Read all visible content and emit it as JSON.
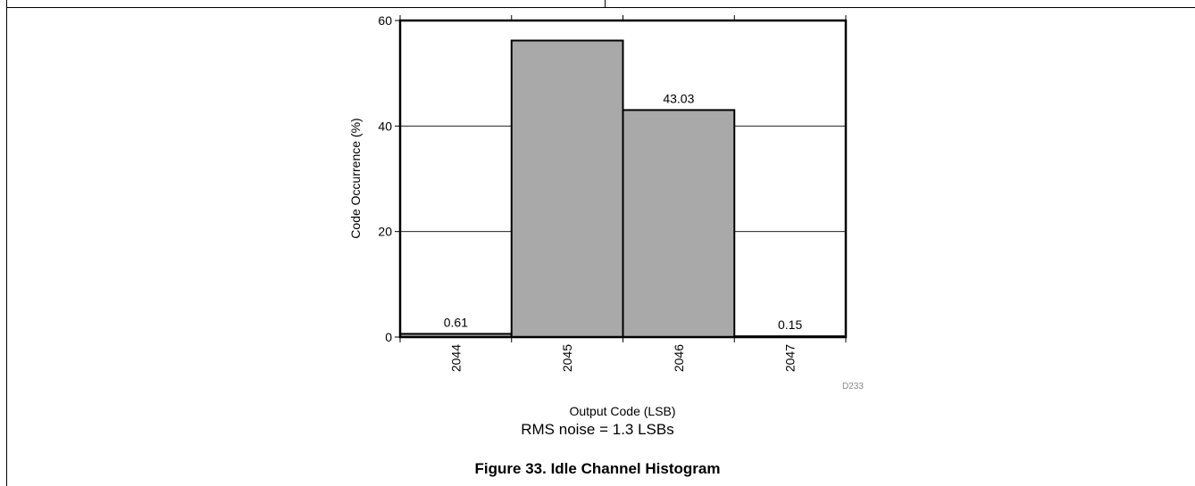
{
  "chart_data": {
    "type": "bar",
    "categories": [
      "2044",
      "2045",
      "2046",
      "2047"
    ],
    "values": [
      0.61,
      56.2,
      43.03,
      0.15
    ],
    "data_labels": [
      "0.61",
      "",
      "43.03",
      "0.15"
    ],
    "xlabel": "Output Code (LSB)",
    "ylabel": "Code Occurrence (%)",
    "ylim": [
      0,
      60
    ],
    "yticks": [
      0,
      20,
      40,
      60
    ],
    "grid": true,
    "bar_color": "#a9a9a9",
    "figure_code": "D233"
  },
  "note": "RMS noise = 1.3 LSBs",
  "caption": "Figure 33. Idle Channel Histogram"
}
